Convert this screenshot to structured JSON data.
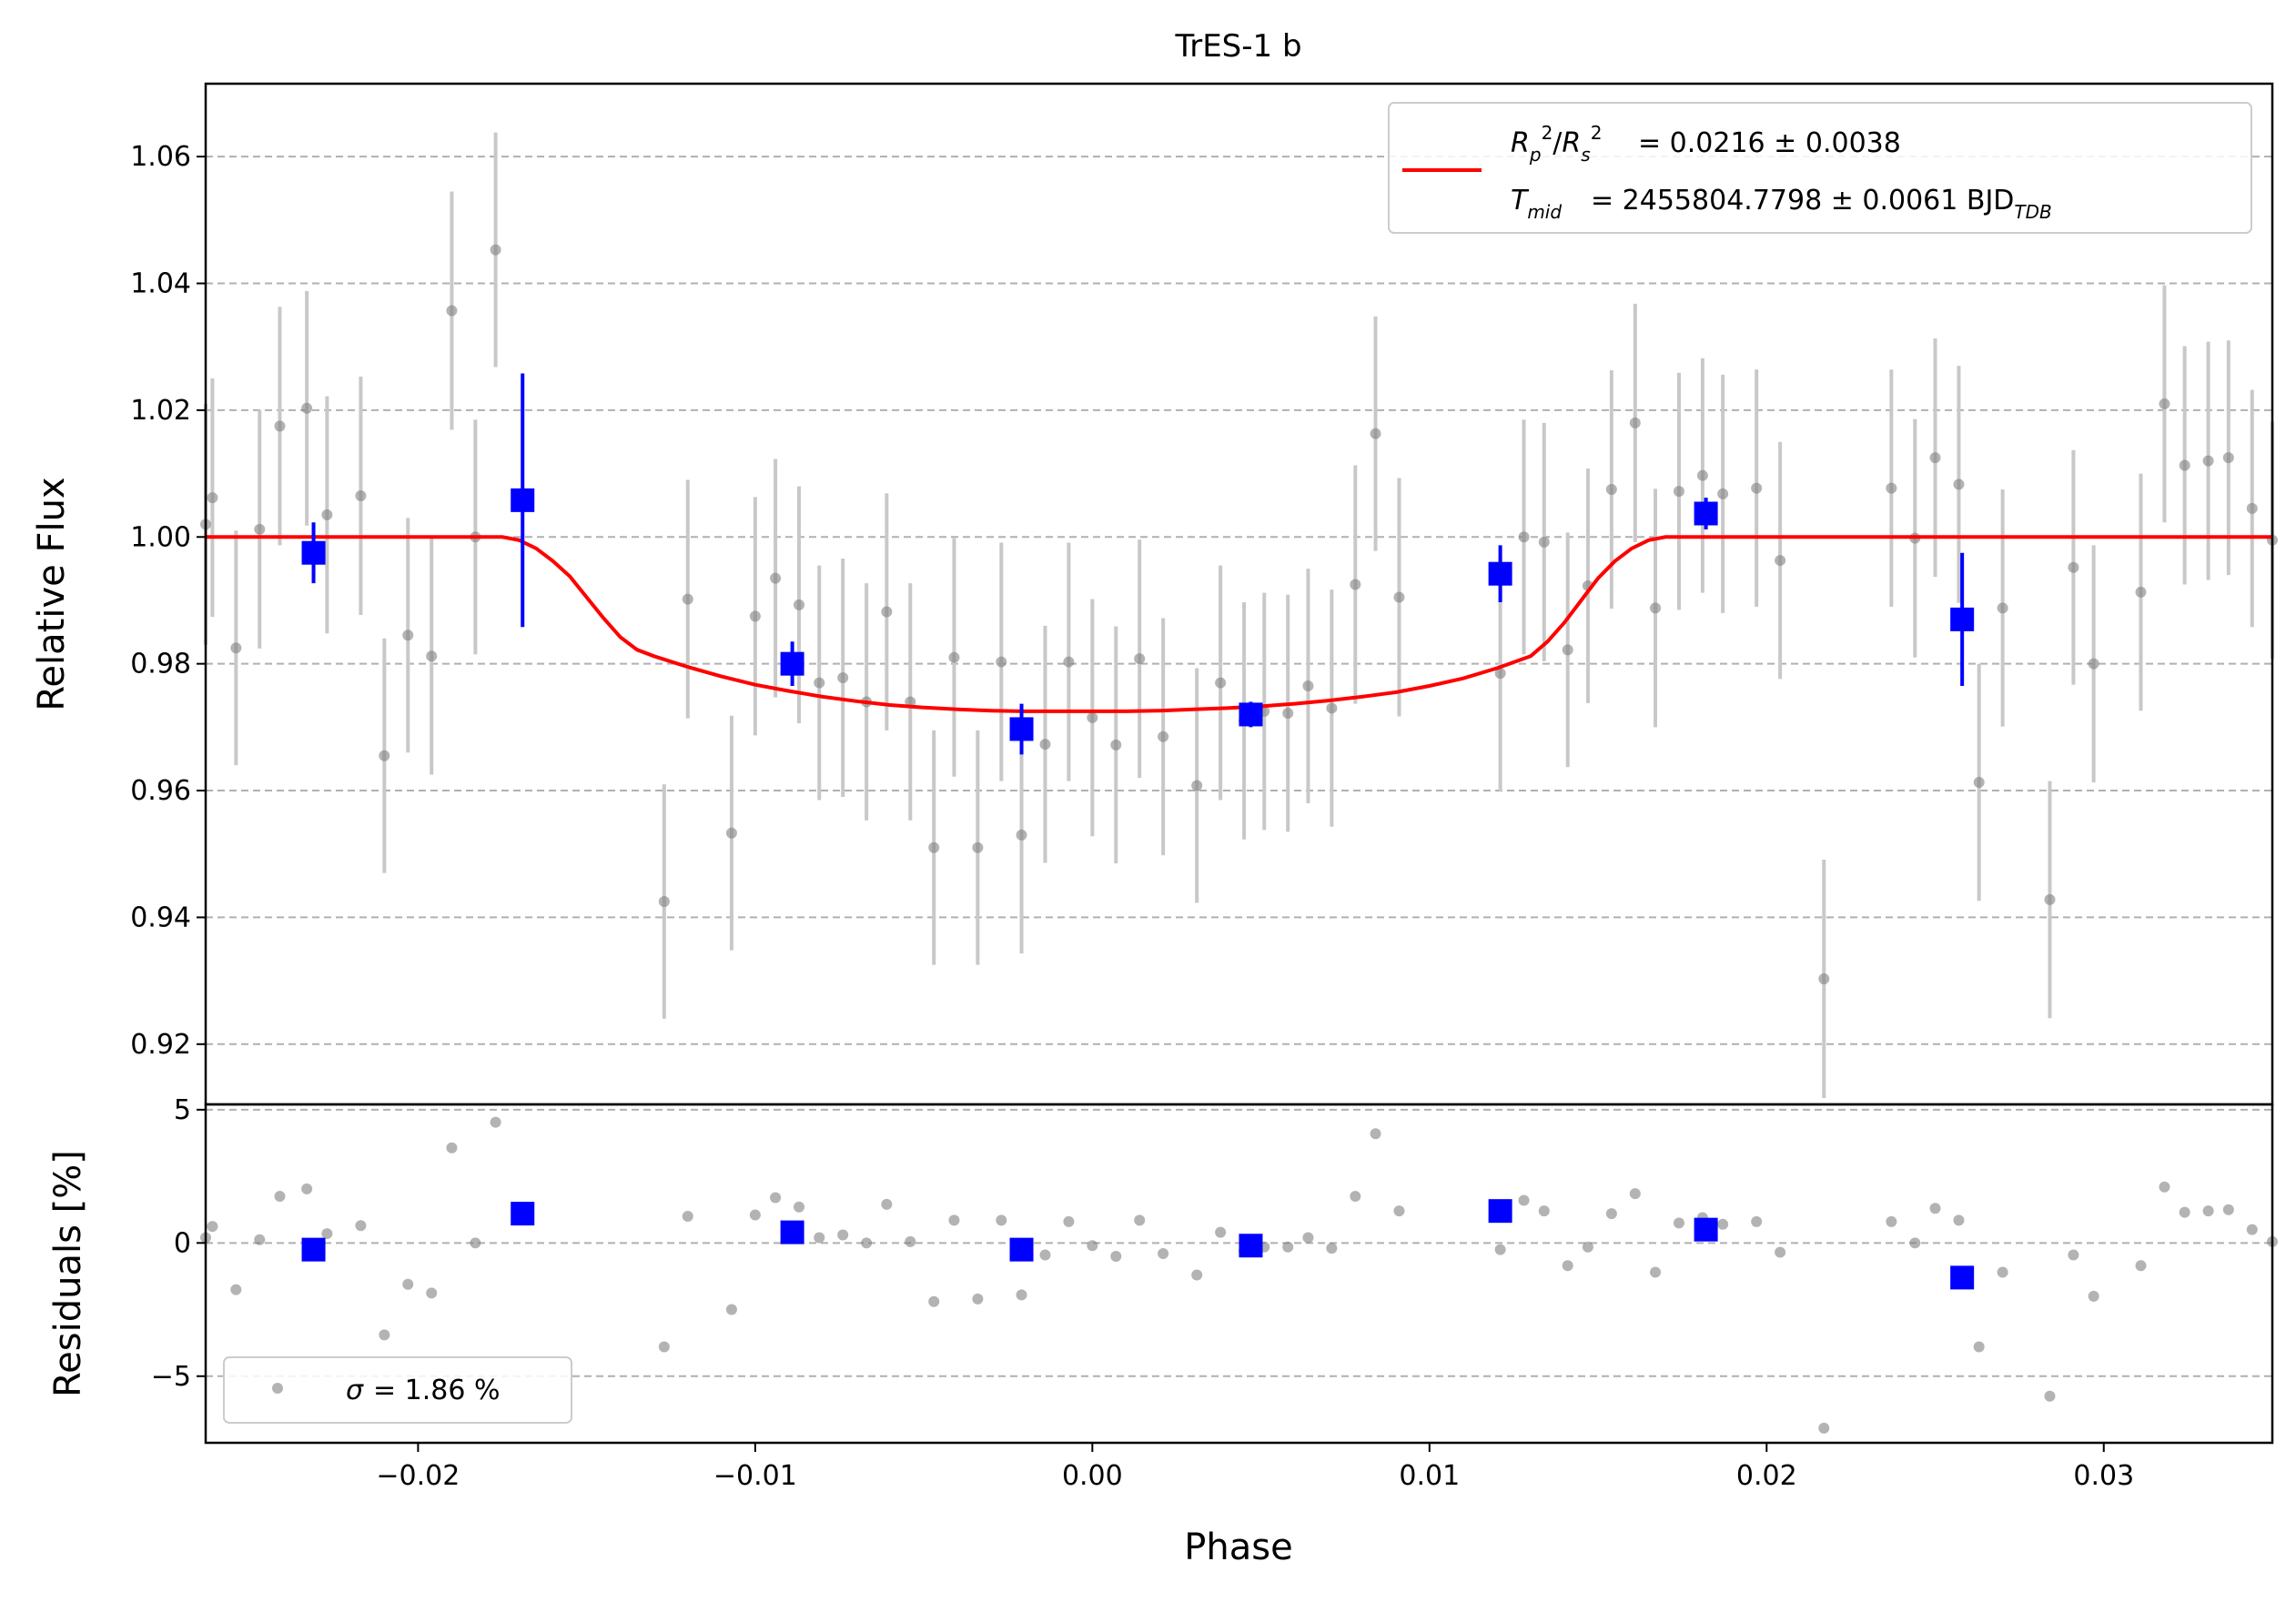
{
  "chart_data": {
    "type": "scatter",
    "title": "TrES-1 b",
    "xlabel": "Phase",
    "xlim": [
      -0.0263,
      0.035
    ],
    "xticks": [
      -0.02,
      -0.01,
      0.0,
      0.01,
      0.02,
      0.03
    ],
    "xtick_labels": [
      "−0.02",
      "−0.01",
      "0.00",
      "0.01",
      "0.02",
      "0.03"
    ],
    "panels": [
      {
        "name": "main",
        "ylabel": "Relative Flux",
        "ylim": [
          0.9105,
          1.0715
        ],
        "yticks": [
          0.92,
          0.94,
          0.96,
          0.98,
          1.0,
          1.02,
          1.04,
          1.06
        ],
        "ytick_labels": [
          "0.92",
          "0.94",
          "0.96",
          "0.98",
          "1.00",
          "1.02",
          "1.04",
          "1.06"
        ],
        "grid": "horizontal dashed"
      },
      {
        "name": "residuals",
        "ylabel": "Residuals [%]",
        "ylim": [
          -7.5,
          5.2
        ],
        "yticks": [
          -5,
          0,
          5
        ],
        "ytick_labels": [
          "−5",
          "0",
          "5"
        ],
        "grid": "horizontal dashed"
      }
    ],
    "data_points": {
      "color": "#808080",
      "error_color": "#c8c8c8",
      "x": [
        -0.0263,
        -0.0261,
        -0.0254,
        -0.0247,
        -0.0241,
        -0.0233,
        -0.0227,
        -0.0217,
        -0.021,
        -0.0203,
        -0.0196,
        -0.019,
        -0.0183,
        -0.0177,
        -0.0127,
        -0.012,
        -0.0107,
        -0.01,
        -0.0094,
        -0.0087,
        -0.0081,
        -0.0074,
        -0.0067,
        -0.0061,
        -0.0054,
        -0.0047,
        -0.0041,
        -0.0034,
        -0.0027,
        -0.0021,
        -0.0014,
        -0.0007,
        0.0,
        0.0007,
        0.0014,
        0.0021,
        0.0031,
        0.0038,
        0.0045,
        0.0051,
        0.0058,
        0.0064,
        0.0071,
        0.0078,
        0.0084,
        0.0091,
        0.0121,
        0.0128,
        0.0134,
        0.0141,
        0.0147,
        0.0154,
        0.0161,
        0.0167,
        0.0174,
        0.0181,
        0.0187,
        0.0197,
        0.0204,
        0.0217,
        0.0237,
        0.0244,
        0.025,
        0.0257,
        0.0263,
        0.027,
        0.0284,
        0.0291,
        0.0297,
        0.0311,
        0.0318,
        0.0324,
        0.0331,
        0.0337,
        0.0344,
        0.035
      ],
      "y": [
        1.002,
        1.0062,
        0.9825,
        1.0012,
        1.0175,
        1.0203,
        1.0035,
        1.0065,
        0.9655,
        0.9845,
        0.9812,
        1.0357,
        1.0,
        1.0453,
        0.9425,
        0.9902,
        0.9533,
        0.9875,
        0.9935,
        0.9893,
        0.977,
        0.9778,
        0.974,
        0.9882,
        0.974,
        0.951,
        0.981,
        0.951,
        0.9803,
        0.953,
        0.9673,
        0.9803,
        0.9715,
        0.9672,
        0.9808,
        0.9685,
        0.9608,
        0.977,
        0.971,
        0.9725,
        0.9722,
        0.9765,
        0.973,
        0.9925,
        1.0163,
        0.9905,
        0.9785,
        1.0,
        0.9992,
        0.9822,
        0.9923,
        1.0075,
        1.018,
        0.9888,
        1.0072,
        1.0097,
        1.0068,
        1.0077,
        0.9963,
        0.9303,
        1.0077,
        0.9998,
        1.0125,
        1.0083,
        0.9613,
        0.9888,
        0.9428,
        0.9952,
        0.98,
        0.9913,
        1.021,
        1.0113,
        1.012,
        1.0125,
        1.0045,
        0.9995
      ],
      "yerr": [
        0.019,
        0.0188,
        0.0185,
        0.0188,
        0.0188,
        0.0185,
        0.0187,
        0.0188,
        0.0185,
        0.0185,
        0.0187,
        0.0188,
        0.0185,
        0.0185,
        0.0185,
        0.0188,
        0.0185,
        0.0188,
        0.0188,
        0.0187,
        0.0185,
        0.0188,
        0.0187,
        0.0187,
        0.0187,
        0.0185,
        0.0188,
        0.0185,
        0.0188,
        0.0187,
        0.0187,
        0.0188,
        0.0187,
        0.0187,
        0.0188,
        0.0187,
        0.0185,
        0.0185,
        0.0187,
        0.0187,
        0.0187,
        0.0185,
        0.0187,
        0.0188,
        0.0185,
        0.0188,
        0.0187,
        0.0185,
        0.0188,
        0.0185,
        0.0185,
        0.0188,
        0.0188,
        0.0188,
        0.0187,
        0.0185,
        0.0188,
        0.0187,
        0.0187,
        0.0188,
        0.0187,
        0.0188,
        0.0188,
        0.0187,
        0.0187,
        0.0187,
        0.0187,
        0.0185,
        0.0187,
        0.0187,
        0.0187,
        0.0188,
        0.0188,
        0.0185,
        0.0187,
        0.0187
      ],
      "residuals": [
        0.2,
        0.62,
        -1.75,
        0.12,
        1.75,
        2.03,
        0.35,
        0.65,
        -3.45,
        -1.55,
        -1.88,
        3.57,
        0.0,
        4.53,
        -3.9,
        1.0,
        -2.5,
        1.05,
        1.7,
        1.35,
        0.2,
        0.3,
        0.0,
        1.45,
        0.05,
        -2.2,
        0.85,
        -2.1,
        0.85,
        -1.95,
        -0.45,
        0.8,
        -0.1,
        -0.5,
        0.85,
        -0.4,
        -1.2,
        0.4,
        -0.3,
        -0.15,
        -0.15,
        0.2,
        -0.2,
        1.75,
        4.1,
        1.2,
        -0.25,
        1.6,
        1.2,
        -0.85,
        -0.15,
        1.1,
        1.85,
        -1.1,
        0.75,
        0.95,
        0.7,
        0.8,
        -0.35,
        -6.95,
        0.8,
        0.0,
        1.3,
        0.85,
        -3.9,
        -1.1,
        -5.75,
        -0.45,
        -2.0,
        -0.85,
        2.1,
        1.15,
        1.2,
        1.25,
        0.5,
        0.05
      ]
    },
    "binned_points": {
      "color": "#0000ff",
      "x": [
        -0.0231,
        -0.0169,
        -0.0089,
        -0.0021,
        0.0047,
        0.0121,
        0.0182,
        0.0258
      ],
      "y": [
        0.9975,
        1.0058,
        0.98,
        0.9697,
        0.972,
        0.9942,
        1.0037,
        0.987
      ],
      "yerr": [
        0.0048,
        0.02,
        0.0035,
        0.004,
        0.002,
        0.0045,
        0.0025,
        0.0105
      ],
      "residuals": [
        -0.25,
        1.1,
        0.4,
        -0.25,
        -0.1,
        1.2,
        0.5,
        -1.3
      ]
    },
    "model": {
      "name": "transit model",
      "color": "#ff0000",
      "x": [
        -0.0263,
        -0.0175,
        -0.017,
        -0.0165,
        -0.016,
        -0.0155,
        -0.015,
        -0.0145,
        -0.014,
        -0.0135,
        -0.013,
        -0.012,
        -0.011,
        -0.01,
        -0.009,
        -0.008,
        -0.007,
        -0.006,
        -0.005,
        -0.004,
        -0.003,
        -0.002,
        -0.001,
        0.0,
        0.001,
        0.002,
        0.003,
        0.004,
        0.005,
        0.006,
        0.007,
        0.008,
        0.009,
        0.01,
        0.011,
        0.012,
        0.013,
        0.0135,
        0.014,
        0.0145,
        0.015,
        0.0155,
        0.016,
        0.0165,
        0.017,
        0.0175,
        0.035
      ],
      "y": [
        1.0,
        1.0,
        0.9995,
        0.9982,
        0.9962,
        0.9938,
        0.9905,
        0.9872,
        0.9842,
        0.9822,
        0.9812,
        0.9795,
        0.978,
        0.9767,
        0.9757,
        0.9748,
        0.9741,
        0.9735,
        0.9731,
        0.9728,
        0.9726,
        0.9725,
        0.9725,
        0.9725,
        0.9725,
        0.9726,
        0.9728,
        0.973,
        0.9733,
        0.9737,
        0.9742,
        0.9748,
        0.9755,
        0.9765,
        0.9777,
        0.9793,
        0.9812,
        0.9835,
        0.9865,
        0.99,
        0.9935,
        0.9962,
        0.9982,
        0.9995,
        1.0,
        1.0,
        1.0
      ]
    },
    "legend_main": {
      "placement": "top-right",
      "line1": "= 0.0216 ± 0.0038",
      "line2": "= 2455804.7798 ± 0.0061 BJD",
      "line2_sub": "TDB"
    },
    "legend_residuals": {
      "placement": "lower-left",
      "label": "= 1.86 %"
    }
  }
}
